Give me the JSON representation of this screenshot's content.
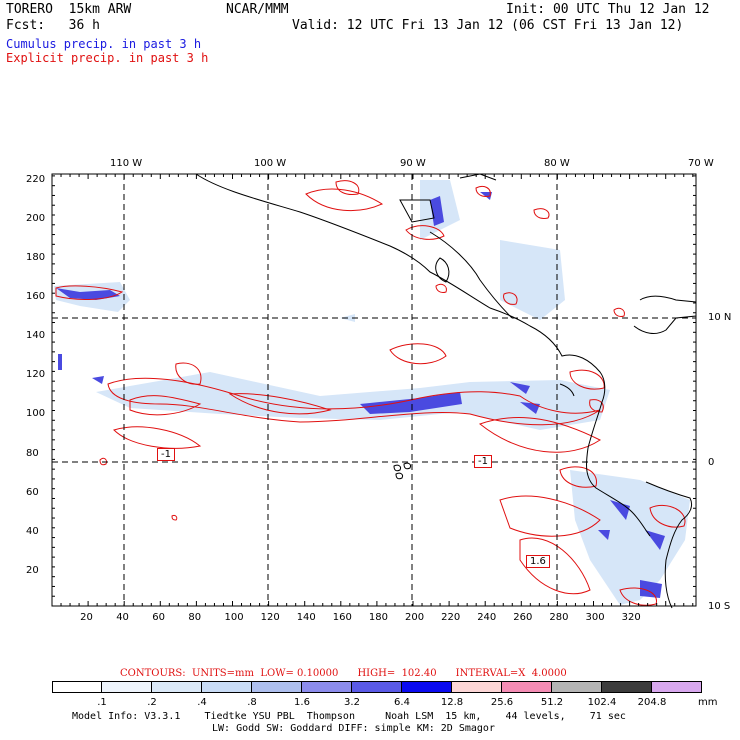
{
  "header": {
    "model": "TORERO  15km ARW",
    "center": "NCAR/MMM",
    "init": "Init: 00 UTC Thu 12 Jan 12",
    "fcst": "Fcst:   36 h",
    "valid": "Valid: 12 UTC Fri 13 Jan 12 (06 CST Fri 13 Jan 12)",
    "cumulus": "Cumulus precip. in past 3 h",
    "explicit": "Explicit precip. in past 3 h",
    "cumulus_color": "#1a1ae0",
    "explicit_color": "#e01010"
  },
  "map": {
    "lon_labels": [
      "110 W",
      "100 W",
      "90 W",
      "80 W",
      "70 W"
    ],
    "lat_labels": [
      "10 N",
      "0",
      "10 S"
    ],
    "x_ticks": [
      "20",
      "40",
      "60",
      "80",
      "100",
      "120",
      "140",
      "160",
      "180",
      "200",
      "220",
      "240",
      "260",
      "280",
      "300",
      "320"
    ],
    "y_ticks": [
      "220",
      "200",
      "180",
      "160",
      "140",
      "120",
      "100",
      "80",
      "60",
      "40",
      "20"
    ],
    "contour_labels": [
      "-1",
      "-1",
      "1.6"
    ]
  },
  "footer": {
    "contours": "CONTOURS:  UNITS=mm  LOW= 0.10000      HIGH=  102.40      INTERVAL=X  4.0000",
    "legend_values": [
      ".1",
      ".2",
      ".4",
      ".8",
      "1.6",
      "3.2",
      "6.4",
      "12.8",
      "25.6",
      "51.2",
      "102.4",
      "204.8"
    ],
    "legend_unit": "mm",
    "legend_colors": [
      "#ffffff",
      "#eef4fc",
      "#dbe9f8",
      "#c9dcf6",
      "#aebfee",
      "#8c8cec",
      "#5a5ae6",
      "#0a0af0",
      "#fcd6d6",
      "#f48cb4",
      "#b4b4b4",
      "#3c3c3c",
      "#d8a8ee"
    ],
    "model_info_1": "Model Info: V3.3.1    Tiedtke YSU PBL  Thompson     Noah LSM  15 km,    44 levels,    71 sec",
    "model_info_2": "LW: Godd SW: Goddard DIFF: simple KM: 2D Smagor"
  }
}
